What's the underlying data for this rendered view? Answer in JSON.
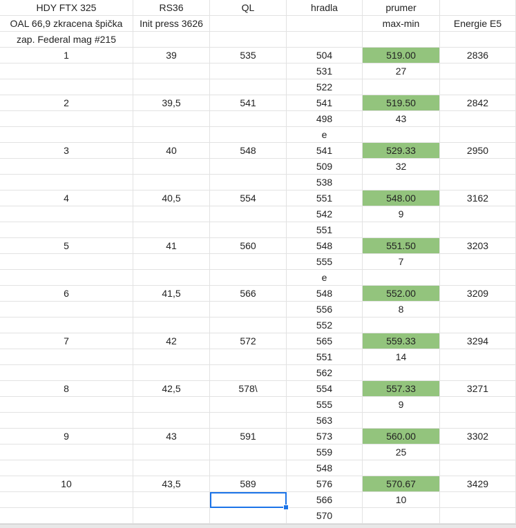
{
  "header_rows": [
    [
      "HDY FTX 325",
      "RS36",
      "QL",
      "hradla",
      "prumer",
      ""
    ],
    [
      "OAL 66,9 zkracena špička",
      "Init press 3626",
      "",
      "",
      "max-min",
      "Energie E5"
    ],
    [
      "zap. Federal mag #215",
      "",
      "",
      "",
      "",
      ""
    ]
  ],
  "groups": [
    {
      "no": "1",
      "rs36": "39",
      "ql": "535",
      "hradla": [
        "504",
        "531",
        "522"
      ],
      "avg": "519.00",
      "maxmin": "27",
      "energy": "2836"
    },
    {
      "no": "2",
      "rs36": "39,5",
      "ql": "541",
      "hradla": [
        "541",
        "498",
        "e"
      ],
      "avg": "519.50",
      "maxmin": "43",
      "energy": "2842"
    },
    {
      "no": "3",
      "rs36": "40",
      "ql": "548",
      "hradla": [
        "541",
        "509",
        "538"
      ],
      "avg": "529.33",
      "maxmin": "32",
      "energy": "2950"
    },
    {
      "no": "4",
      "rs36": "40,5",
      "ql": "554",
      "hradla": [
        "551",
        "542",
        "551"
      ],
      "avg": "548.00",
      "maxmin": "9",
      "energy": "3162"
    },
    {
      "no": "5",
      "rs36": "41",
      "ql": "560",
      "hradla": [
        "548",
        "555",
        "e"
      ],
      "avg": "551.50",
      "maxmin": "7",
      "energy": "3203"
    },
    {
      "no": "6",
      "rs36": "41,5",
      "ql": "566",
      "hradla": [
        "548",
        "556",
        "552"
      ],
      "avg": "552.00",
      "maxmin": "8",
      "energy": "3209"
    },
    {
      "no": "7",
      "rs36": "42",
      "ql": "572",
      "hradla": [
        "565",
        "551",
        "562"
      ],
      "avg": "559.33",
      "maxmin": "14",
      "energy": "3294"
    },
    {
      "no": "8",
      "rs36": "42,5",
      "ql": "578\\",
      "hradla": [
        "554",
        "555",
        "563"
      ],
      "avg": "557.33",
      "maxmin": "9",
      "energy": "3271"
    },
    {
      "no": "9",
      "rs36": "43",
      "ql": "591",
      "hradla": [
        "573",
        "559",
        "548"
      ],
      "avg": "560.00",
      "maxmin": "25",
      "energy": "3302"
    },
    {
      "no": "10",
      "rs36": "43,5",
      "ql": "589",
      "hradla": [
        "576",
        "566",
        "570"
      ],
      "avg": "570.67",
      "maxmin": "10",
      "energy": "3429"
    }
  ],
  "colors": {
    "avg_highlight": "#93c47d",
    "selection": "#1a73e8",
    "gridline": "#e2e2e2"
  }
}
